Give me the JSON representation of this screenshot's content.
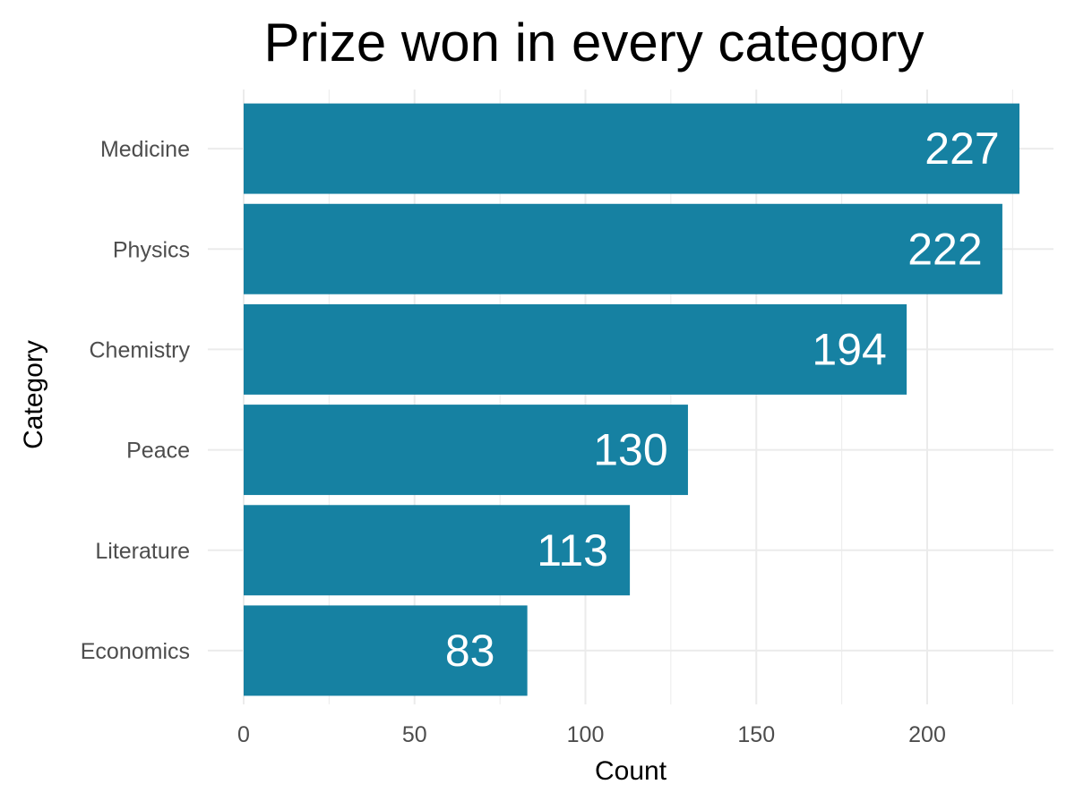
{
  "chart_data": {
    "type": "bar",
    "orientation": "horizontal",
    "title": "Prize won in every category",
    "xlabel": "Count",
    "ylabel": "Category",
    "categories": [
      "Medicine",
      "Physics",
      "Chemistry",
      "Peace",
      "Literature",
      "Economics"
    ],
    "values": [
      227,
      222,
      194,
      130,
      113,
      83
    ],
    "data_labels": [
      "227",
      "222",
      "194",
      "130",
      "113",
      "83"
    ],
    "x_ticks": [
      0,
      50,
      100,
      150,
      200
    ],
    "x_tick_labels": [
      "0",
      "50",
      "100",
      "150",
      "200"
    ],
    "xlim": [
      0,
      227
    ],
    "grid": true,
    "legend": "none",
    "colors": {
      "bar": "#1681a2",
      "grid": "#ebebeb",
      "label_text": "#ffffff",
      "axis_text": "#4d4d4d",
      "title_text": "#000000"
    }
  }
}
